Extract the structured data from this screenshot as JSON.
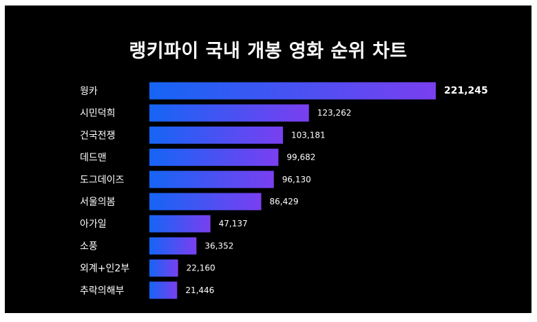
{
  "chart_data": {
    "type": "bar",
    "orientation": "horizontal",
    "title": "랭키파이 국내 개봉 영화 순위 차트",
    "categories": [
      "웡카",
      "시민덕희",
      "건국전쟁",
      "데드맨",
      "도그데이즈",
      "서울의봄",
      "아가일",
      "소풍",
      "외계+인2부",
      "추락의해부"
    ],
    "values": [
      221245,
      123262,
      103181,
      99682,
      96130,
      86429,
      47137,
      36352,
      22160,
      21446
    ],
    "value_labels": [
      "221,245",
      "123,262",
      "103,181",
      "99,682",
      "96,130",
      "86,429",
      "47,137",
      "36,352",
      "22,160",
      "21,446"
    ],
    "xlabel": "",
    "ylabel": "",
    "xlim": [
      0,
      221245
    ],
    "grid": false,
    "legend": "none",
    "colors": {
      "background": "#000000",
      "bar_start": "#1565f5",
      "bar_end": "#7a3ff0",
      "text": "#ffffff"
    }
  }
}
